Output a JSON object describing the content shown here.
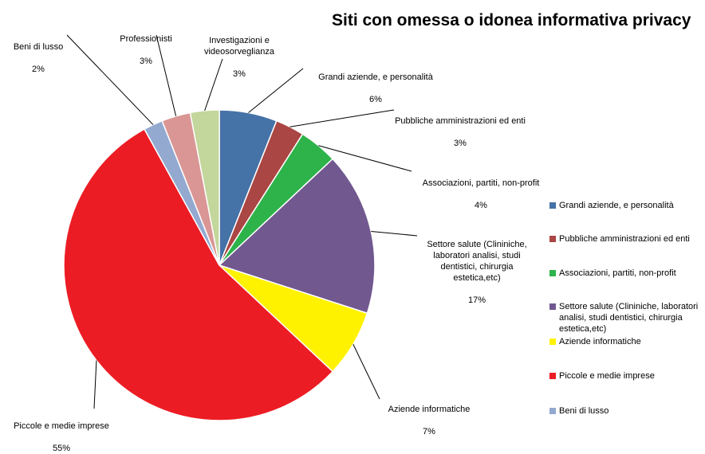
{
  "chart_data": {
    "type": "pie",
    "title": "Siti con omessa o idonea informativa privacy",
    "slices": [
      {
        "label": "Grandi aziende, e personalità",
        "value": 6,
        "pct_label": "6%",
        "color": "#4572A7"
      },
      {
        "label": "Pubbliche amministrazioni   ed enti",
        "value": 3,
        "pct_label": "3%",
        "color": "#AA4643"
      },
      {
        "label": "Associazioni, partiti, non-profit",
        "value": 4,
        "pct_label": "4%",
        "color": "#2DB34A"
      },
      {
        "label": "Settore salute (Clininiche, laboratori analisi, studi dentistici, chirurgia estetica,etc)",
        "value": 17,
        "pct_label": "17%",
        "color": "#71588F"
      },
      {
        "label": "Aziende informatiche",
        "value": 7,
        "pct_label": "7%",
        "color": "#FFF200"
      },
      {
        "label": "Piccole e medie imprese",
        "value": 55,
        "pct_label": "55%",
        "color": "#EC1C24"
      },
      {
        "label": "Beni di lusso",
        "value": 2,
        "pct_label": "2%",
        "color": "#93A9CF"
      },
      {
        "label": "Professionisti",
        "value": 3,
        "pct_label": "3%",
        "color": "#D99694"
      },
      {
        "label": "Investigazioni e videosorveglianza",
        "value": 3,
        "pct_label": "3%",
        "color": "#C3D69B"
      }
    ],
    "legend_items": [
      "Grandi aziende, e personalità",
      "Pubbliche amministrazioni   ed enti",
      "Associazioni, partiti, non-profit",
      "Settore salute (Clininiche, laboratori analisi, studi dentistici, chirurgia estetica,etc)",
      "Aziende informatiche",
      "Piccole e medie imprese",
      "Beni di lusso"
    ],
    "legend_position": "right"
  }
}
